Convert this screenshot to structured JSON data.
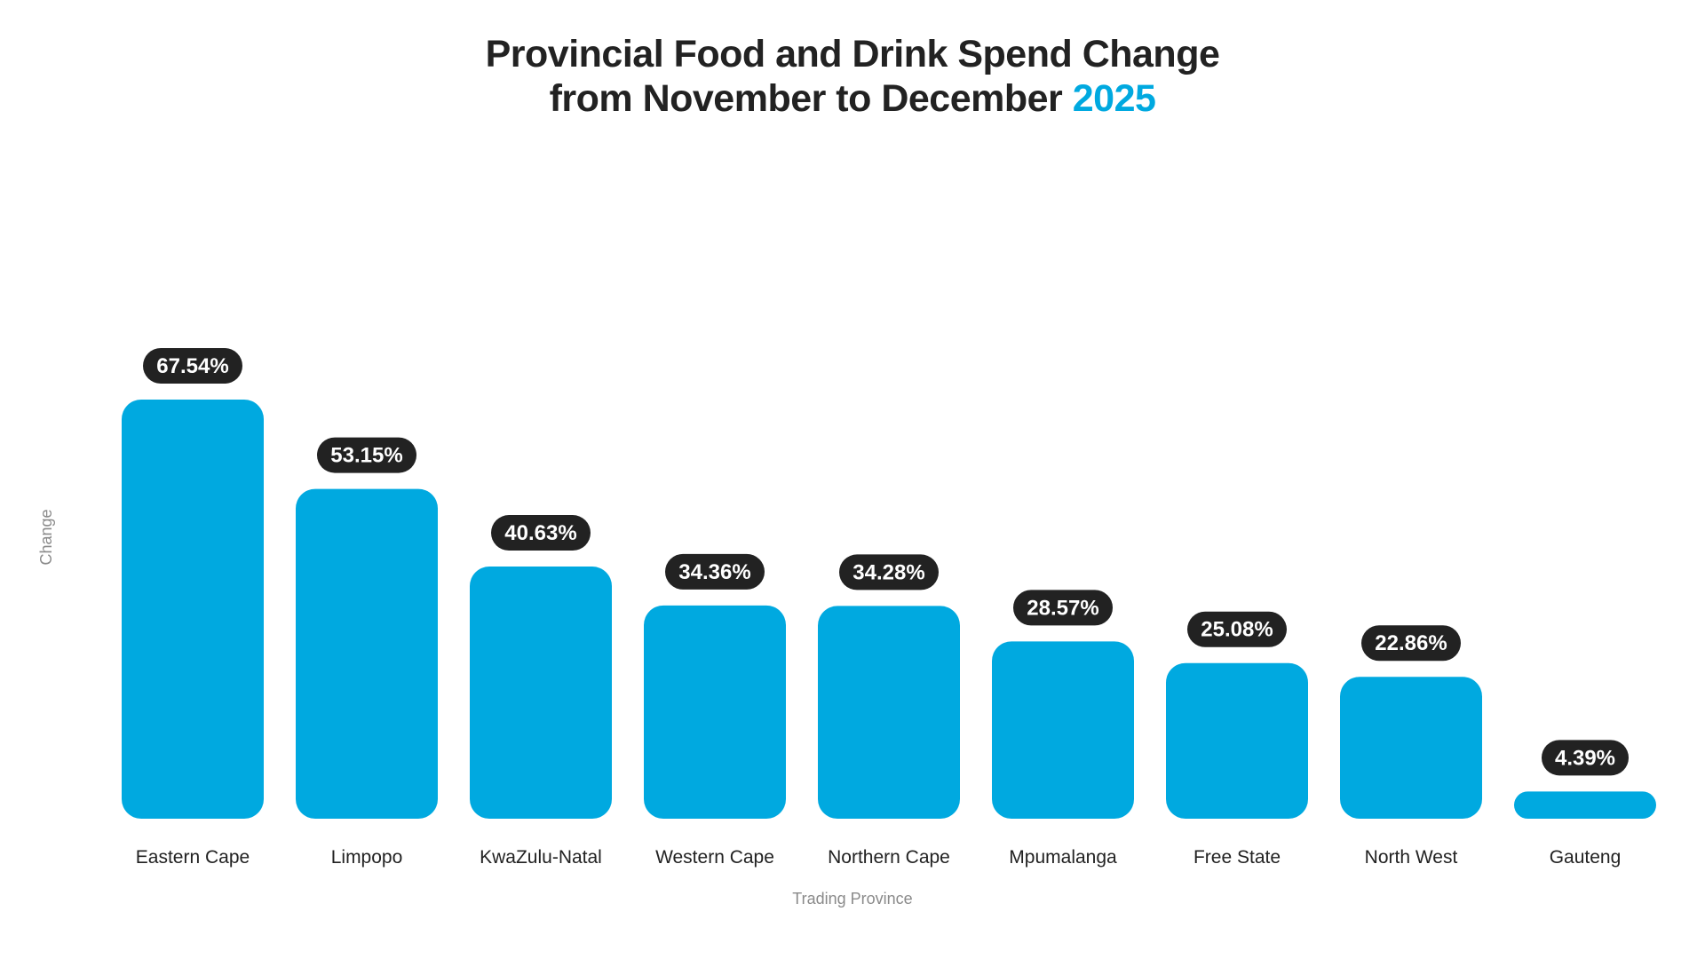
{
  "chart_data": {
    "type": "bar",
    "title_line1": "Provincial Food and Drink Spend Change",
    "title_line2_prefix": "from November to December",
    "title_year": "2025",
    "xlabel": "Trading Province",
    "ylabel": "Change",
    "categories": [
      "Eastern Cape",
      "Limpopo",
      "KwaZulu-Natal",
      "Western Cape",
      "Northern Cape",
      "Mpumalanga",
      "Free State",
      "North West",
      "Gauteng"
    ],
    "values": [
      67.54,
      53.15,
      40.63,
      34.36,
      34.28,
      28.57,
      25.08,
      22.86,
      4.39
    ],
    "value_labels": [
      "67.54%",
      "53.15%",
      "40.63%",
      "34.36%",
      "34.28%",
      "28.57%",
      "25.08%",
      "22.86%",
      "4.39%"
    ],
    "ylim": [
      0,
      67.54
    ],
    "grid": false,
    "bar_color": "#00a9e0",
    "label_badge_color": "#222222",
    "accent_color": "#00a9e0"
  }
}
